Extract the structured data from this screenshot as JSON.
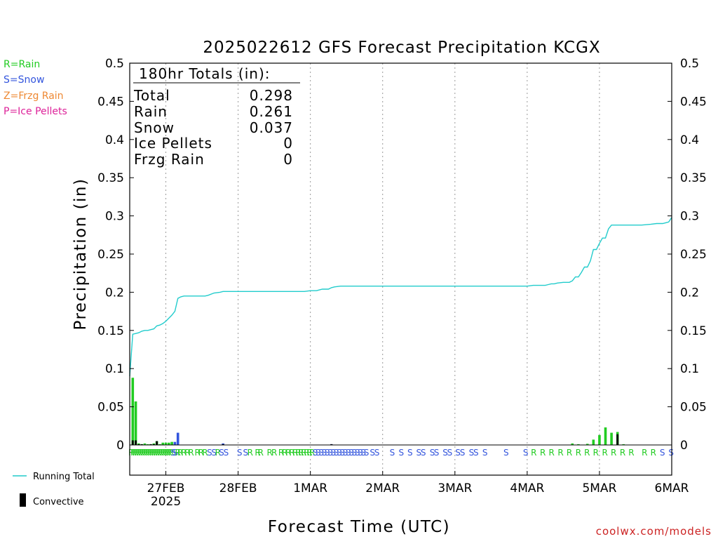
{
  "chart_data": {
    "type": "bar",
    "title": "2025022612 GFS Forecast Precipitation KCGX",
    "xlabel": "Forecast Time (UTC)",
    "ylabel": "Precipitation (in)",
    "ylim": [
      0,
      0.5
    ],
    "y_ticks": [
      "0",
      "0.05",
      "0.1",
      "0.15",
      "0.2",
      "0.25",
      "0.3",
      "0.35",
      "0.4",
      "0.45",
      "0.5"
    ],
    "x_unit": "forecast hour",
    "xlim": [
      0,
      180
    ],
    "x_ticks": [
      {
        "hour": 12,
        "label": "27FEB",
        "sublabel": "2025"
      },
      {
        "hour": 36,
        "label": "28FEB",
        "sublabel": ""
      },
      {
        "hour": 60,
        "label": "1MAR",
        "sublabel": ""
      },
      {
        "hour": 84,
        "label": "2MAR",
        "sublabel": ""
      },
      {
        "hour": 108,
        "label": "3MAR",
        "sublabel": ""
      },
      {
        "hour": 132,
        "label": "4MAR",
        "sublabel": ""
      },
      {
        "hour": 156,
        "label": "5MAR",
        "sublabel": ""
      },
      {
        "hour": 180,
        "label": "6MAR",
        "sublabel": ""
      }
    ],
    "legend_types": [
      {
        "label": "R=Rain",
        "color": "#22cc22"
      },
      {
        "label": "S=Snow",
        "color": "#3355dd"
      },
      {
        "label": "Z=Frzg Rain",
        "color": "#ee8833"
      },
      {
        "label": "P=Ice Pellets",
        "color": "#dd2299"
      }
    ],
    "legend_series": [
      {
        "label": "Running Total",
        "color": "#22cccc"
      },
      {
        "label": "Convective",
        "color": "#000000"
      }
    ],
    "totals_box": {
      "header": "180hr Totals (in):",
      "rows": [
        {
          "label": "Total",
          "value": "0.298"
        },
        {
          "label": "Rain",
          "value": "0.261"
        },
        {
          "label": "Snow",
          "value": "0.037"
        },
        {
          "label": "Ice Pellets",
          "value": "0"
        },
        {
          "label": "Frzg Rain",
          "value": "0"
        }
      ]
    },
    "bars": [
      {
        "hour": 1,
        "value": 0.088,
        "color": "#22cc22",
        "convective": 0.006
      },
      {
        "hour": 2,
        "value": 0.057,
        "color": "#22cc22",
        "convective": 0.006
      },
      {
        "hour": 3,
        "value": 0.002,
        "color": "#22cc22",
        "convective": 0.001
      },
      {
        "hour": 4,
        "value": 0.001,
        "color": "#22cc22",
        "convective": 0.001
      },
      {
        "hour": 5,
        "value": 0.002,
        "color": "#22cc22",
        "convective": 0
      },
      {
        "hour": 6,
        "value": 0.001,
        "color": "#22cc22",
        "convective": 0
      },
      {
        "hour": 7,
        "value": 0.001,
        "color": "#22cc22",
        "convective": 0.001
      },
      {
        "hour": 8,
        "value": 0.002,
        "color": "#22cc22",
        "convective": 0.001
      },
      {
        "hour": 9,
        "value": 0.005,
        "color": "#22cc22",
        "convective": 0.005
      },
      {
        "hour": 10,
        "value": 0.001,
        "color": "#22cc22",
        "convective": 0
      },
      {
        "hour": 11,
        "value": 0.003,
        "color": "#22cc22",
        "convective": 0
      },
      {
        "hour": 12,
        "value": 0.003,
        "color": "#22cc22",
        "convective": 0
      },
      {
        "hour": 13,
        "value": 0.003,
        "color": "#22cc22",
        "convective": 0
      },
      {
        "hour": 14,
        "value": 0.004,
        "color": "#22cc22",
        "convective": 0
      },
      {
        "hour": 15,
        "value": 0.004,
        "color": "#3355dd",
        "convective": 0
      },
      {
        "hour": 16,
        "value": 0.016,
        "color": "#3355dd",
        "convective": 0
      },
      {
        "hour": 31,
        "value": 0.002,
        "color": "#3355dd",
        "convective": 0.001
      },
      {
        "hour": 67,
        "value": 0.001,
        "color": "#3355dd",
        "convective": 0.001
      },
      {
        "hour": 147,
        "value": 0.002,
        "color": "#22cc22",
        "convective": 0
      },
      {
        "hour": 149,
        "value": 0.001,
        "color": "#22cc22",
        "convective": 0
      },
      {
        "hour": 152,
        "value": 0.0015,
        "color": "#22cc22",
        "convective": 0
      },
      {
        "hour": 154,
        "value": 0.007,
        "color": "#22cc22",
        "convective": 0
      },
      {
        "hour": 156,
        "value": 0.013,
        "color": "#22cc22",
        "convective": 0
      },
      {
        "hour": 158,
        "value": 0.023,
        "color": "#22cc22",
        "convective": 0
      },
      {
        "hour": 160,
        "value": 0.016,
        "color": "#22cc22",
        "convective": 0
      },
      {
        "hour": 162,
        "value": 0.017,
        "color": "#22cc22",
        "convective": 0.014
      },
      {
        "hour": 164,
        "value": 0.001,
        "color": "#22cc22",
        "convective": 0
      }
    ],
    "running_total": [
      [
        0,
        0.09
      ],
      [
        1,
        0.145
      ],
      [
        2,
        0.146
      ],
      [
        3,
        0.147
      ],
      [
        4,
        0.149
      ],
      [
        5,
        0.15
      ],
      [
        6,
        0.15
      ],
      [
        7,
        0.151
      ],
      [
        8,
        0.152
      ],
      [
        9,
        0.156
      ],
      [
        10,
        0.157
      ],
      [
        11,
        0.159
      ],
      [
        12,
        0.162
      ],
      [
        13,
        0.166
      ],
      [
        14,
        0.17
      ],
      [
        15,
        0.175
      ],
      [
        16,
        0.192
      ],
      [
        17,
        0.194
      ],
      [
        18,
        0.195
      ],
      [
        19,
        0.195
      ],
      [
        20,
        0.195
      ],
      [
        21,
        0.195
      ],
      [
        22,
        0.195
      ],
      [
        23,
        0.195
      ],
      [
        24,
        0.195
      ],
      [
        25,
        0.195
      ],
      [
        26,
        0.196
      ],
      [
        28,
        0.199
      ],
      [
        30,
        0.2
      ],
      [
        31,
        0.201
      ],
      [
        33,
        0.201
      ],
      [
        36,
        0.201
      ],
      [
        42,
        0.201
      ],
      [
        48,
        0.201
      ],
      [
        54,
        0.201
      ],
      [
        58,
        0.201
      ],
      [
        60,
        0.202
      ],
      [
        62,
        0.202
      ],
      [
        63,
        0.203
      ],
      [
        64,
        0.204
      ],
      [
        66,
        0.204
      ],
      [
        67,
        0.206
      ],
      [
        68,
        0.207
      ],
      [
        70,
        0.208
      ],
      [
        72,
        0.208
      ],
      [
        84,
        0.208
      ],
      [
        96,
        0.208
      ],
      [
        108,
        0.208
      ],
      [
        120,
        0.208
      ],
      [
        132,
        0.208
      ],
      [
        134,
        0.209
      ],
      [
        138,
        0.209
      ],
      [
        139,
        0.21
      ],
      [
        140,
        0.211
      ],
      [
        141,
        0.211
      ],
      [
        142,
        0.212
      ],
      [
        144,
        0.213
      ],
      [
        146,
        0.213
      ],
      [
        147,
        0.215
      ],
      [
        148,
        0.22
      ],
      [
        149,
        0.22
      ],
      [
        150,
        0.226
      ],
      [
        151,
        0.233
      ],
      [
        152,
        0.233
      ],
      [
        153,
        0.241
      ],
      [
        154,
        0.256
      ],
      [
        155,
        0.256
      ],
      [
        156,
        0.264
      ],
      [
        157,
        0.271
      ],
      [
        158,
        0.271
      ],
      [
        159,
        0.283
      ],
      [
        160,
        0.288
      ],
      [
        165,
        0.288
      ],
      [
        170,
        0.288
      ],
      [
        173,
        0.289
      ],
      [
        175,
        0.29
      ],
      [
        177,
        0.29
      ],
      [
        178,
        0.291
      ],
      [
        179,
        0.292
      ],
      [
        180,
        0.298
      ]
    ],
    "ptype_markers": [
      {
        "hour": 0.5,
        "t": "R"
      },
      {
        "hour": 1.2,
        "t": "R"
      },
      {
        "hour": 1.9,
        "t": "R"
      },
      {
        "hour": 2.6,
        "t": "R"
      },
      {
        "hour": 3.3,
        "t": "R"
      },
      {
        "hour": 4.0,
        "t": "R"
      },
      {
        "hour": 4.7,
        "t": "R"
      },
      {
        "hour": 5.4,
        "t": "R"
      },
      {
        "hour": 6.1,
        "t": "R"
      },
      {
        "hour": 6.8,
        "t": "R"
      },
      {
        "hour": 7.5,
        "t": "R"
      },
      {
        "hour": 8.2,
        "t": "R"
      },
      {
        "hour": 8.9,
        "t": "R"
      },
      {
        "hour": 9.6,
        "t": "R"
      },
      {
        "hour": 10.3,
        "t": "R"
      },
      {
        "hour": 11.0,
        "t": "R"
      },
      {
        "hour": 11.7,
        "t": "R"
      },
      {
        "hour": 12.4,
        "t": "R"
      },
      {
        "hour": 13.1,
        "t": "R"
      },
      {
        "hour": 13.8,
        "t": "R"
      },
      {
        "hour": 14.5,
        "t": "S"
      },
      {
        "hour": 15.2,
        "t": "S"
      },
      {
        "hour": 16.0,
        "t": "R"
      },
      {
        "hour": 16.8,
        "t": "R"
      },
      {
        "hour": 18.0,
        "t": "R"
      },
      {
        "hour": 19.2,
        "t": "R"
      },
      {
        "hour": 20.4,
        "t": "R"
      },
      {
        "hour": 22.5,
        "t": "R"
      },
      {
        "hour": 23.7,
        "t": "R"
      },
      {
        "hour": 25.0,
        "t": "R"
      },
      {
        "hour": 26.5,
        "t": "S"
      },
      {
        "hour": 28.0,
        "t": "S"
      },
      {
        "hour": 29.3,
        "t": "R"
      },
      {
        "hour": 30.5,
        "t": "S"
      },
      {
        "hour": 32.0,
        "t": "S"
      },
      {
        "hour": 36.5,
        "t": "S"
      },
      {
        "hour": 38.5,
        "t": "S"
      },
      {
        "hour": 40.0,
        "t": "R"
      },
      {
        "hour": 42.5,
        "t": "R"
      },
      {
        "hour": 43.5,
        "t": "R"
      },
      {
        "hour": 46.5,
        "t": "R"
      },
      {
        "hour": 48.0,
        "t": "R"
      },
      {
        "hour": 50.3,
        "t": "R"
      },
      {
        "hour": 51.5,
        "t": "R"
      },
      {
        "hour": 52.7,
        "t": "R"
      },
      {
        "hour": 53.9,
        "t": "R"
      },
      {
        "hour": 55.0,
        "t": "R"
      },
      {
        "hour": 56.0,
        "t": "R"
      },
      {
        "hour": 56.9,
        "t": "R"
      },
      {
        "hour": 57.8,
        "t": "R"
      },
      {
        "hour": 58.8,
        "t": "R"
      },
      {
        "hour": 59.7,
        "t": "R"
      },
      {
        "hour": 60.6,
        "t": "R"
      },
      {
        "hour": 61.6,
        "t": "S"
      },
      {
        "hour": 62.6,
        "t": "S"
      },
      {
        "hour": 63.6,
        "t": "S"
      },
      {
        "hour": 64.6,
        "t": "S"
      },
      {
        "hour": 65.6,
        "t": "S"
      },
      {
        "hour": 66.6,
        "t": "S"
      },
      {
        "hour": 67.6,
        "t": "S"
      },
      {
        "hour": 68.6,
        "t": "S"
      },
      {
        "hour": 69.6,
        "t": "S"
      },
      {
        "hour": 70.6,
        "t": "S"
      },
      {
        "hour": 71.6,
        "t": "S"
      },
      {
        "hour": 72.6,
        "t": "S"
      },
      {
        "hour": 73.6,
        "t": "S"
      },
      {
        "hour": 74.6,
        "t": "S"
      },
      {
        "hour": 75.6,
        "t": "S"
      },
      {
        "hour": 76.6,
        "t": "S"
      },
      {
        "hour": 77.6,
        "t": "S"
      },
      {
        "hour": 78.6,
        "t": "S"
      },
      {
        "hour": 80.6,
        "t": "S"
      },
      {
        "hour": 82.1,
        "t": "S"
      },
      {
        "hour": 87.2,
        "t": "S"
      },
      {
        "hour": 90.2,
        "t": "S"
      },
      {
        "hour": 93.1,
        "t": "S"
      },
      {
        "hour": 96.0,
        "t": "S"
      },
      {
        "hour": 97.5,
        "t": "S"
      },
      {
        "hour": 100.5,
        "t": "S"
      },
      {
        "hour": 101.9,
        "t": "S"
      },
      {
        "hour": 104.8,
        "t": "S"
      },
      {
        "hour": 106.3,
        "t": "S"
      },
      {
        "hour": 109.0,
        "t": "S"
      },
      {
        "hour": 110.5,
        "t": "S"
      },
      {
        "hour": 113.5,
        "t": "S"
      },
      {
        "hour": 115.0,
        "t": "S"
      },
      {
        "hour": 118.0,
        "t": "S"
      },
      {
        "hour": 125.0,
        "t": "S"
      },
      {
        "hour": 131.5,
        "t": "S"
      },
      {
        "hour": 134.2,
        "t": "R"
      },
      {
        "hour": 137.2,
        "t": "R"
      },
      {
        "hour": 140.1,
        "t": "R"
      },
      {
        "hour": 143.1,
        "t": "R"
      },
      {
        "hour": 146.0,
        "t": "R"
      },
      {
        "hour": 149.0,
        "t": "R"
      },
      {
        "hour": 151.9,
        "t": "R"
      },
      {
        "hour": 154.8,
        "t": "R"
      },
      {
        "hour": 157.8,
        "t": "R"
      },
      {
        "hour": 160.7,
        "t": "R"
      },
      {
        "hour": 163.7,
        "t": "R"
      },
      {
        "hour": 166.6,
        "t": "R"
      },
      {
        "hour": 171.0,
        "t": "R"
      },
      {
        "hour": 173.9,
        "t": "R"
      },
      {
        "hour": 176.9,
        "t": "S"
      },
      {
        "hour": 179.8,
        "t": "S"
      }
    ],
    "marker_colors": {
      "R": "#22cc22",
      "S": "#3355dd"
    }
  },
  "footer_credit": "coolwx.com/models"
}
